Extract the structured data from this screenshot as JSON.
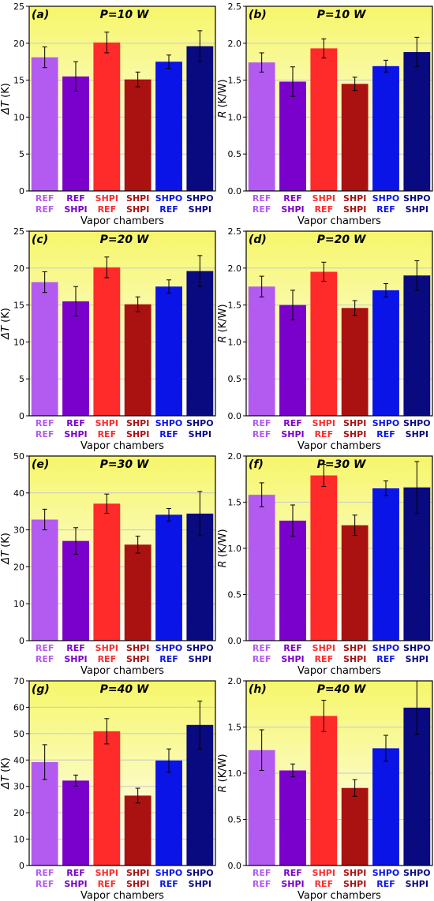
{
  "chart_data": [
    {
      "type": "bar",
      "panel_label": "(a)",
      "title": "P=10 W",
      "ylabel_symbol": "ΔT",
      "ylabel_unit": "(K)",
      "xlabel": "Vapor chambers",
      "ylim": [
        0,
        25
      ],
      "yticks": [
        "0",
        "5",
        "10",
        "15",
        "20",
        "25"
      ],
      "categories": [
        [
          "REF",
          "REF"
        ],
        [
          "REF",
          "SHPI"
        ],
        [
          "SHPI",
          "REF"
        ],
        [
          "SHPI",
          "SHPI"
        ],
        [
          "SHPO",
          "REF"
        ],
        [
          "SHPO",
          "SHPI"
        ]
      ],
      "values": [
        18.1,
        15.5,
        20.1,
        15.1,
        17.5,
        19.6
      ],
      "errors": [
        1.4,
        2.0,
        1.4,
        1.0,
        0.9,
        2.1
      ]
    },
    {
      "type": "bar",
      "panel_label": "(b)",
      "title": "P=10 W",
      "ylabel_symbol": "R",
      "ylabel_unit": "(K/W)",
      "xlabel": "Vapor chambers",
      "ylim": [
        0,
        2.5
      ],
      "yticks": [
        "0.0",
        "0.5",
        "1.0",
        "1.5",
        "2.0",
        "2.5"
      ],
      "categories": [
        [
          "REF",
          "REF"
        ],
        [
          "REF",
          "SHPI"
        ],
        [
          "SHPI",
          "REF"
        ],
        [
          "SHPI",
          "SHPI"
        ],
        [
          "SHPO",
          "REF"
        ],
        [
          "SHPO",
          "SHPI"
        ]
      ],
      "values": [
        1.74,
        1.48,
        1.93,
        1.45,
        1.69,
        1.88
      ],
      "errors": [
        0.13,
        0.2,
        0.13,
        0.09,
        0.08,
        0.2
      ]
    },
    {
      "type": "bar",
      "panel_label": "(c)",
      "title": "P=20 W",
      "ylabel_symbol": "ΔT",
      "ylabel_unit": "(K)",
      "xlabel": "Vapor chambers",
      "ylim": [
        0,
        25
      ],
      "yticks": [
        "0",
        "5",
        "10",
        "15",
        "20",
        "25"
      ],
      "categories": [
        [
          "REF",
          "REF"
        ],
        [
          "REF",
          "SHPI"
        ],
        [
          "SHPI",
          "REF"
        ],
        [
          "SHPI",
          "SHPI"
        ],
        [
          "SHPO",
          "REF"
        ],
        [
          "SHPO",
          "SHPI"
        ]
      ],
      "values": [
        18.1,
        15.5,
        20.1,
        15.1,
        17.5,
        19.6
      ],
      "errors": [
        1.4,
        2.0,
        1.4,
        1.0,
        0.9,
        2.1
      ]
    },
    {
      "type": "bar",
      "panel_label": "(d)",
      "title": "P=20 W",
      "ylabel_symbol": "R",
      "ylabel_unit": "(K/W)",
      "xlabel": "Vapor chambers",
      "ylim": [
        0,
        2.5
      ],
      "yticks": [
        "0.0",
        "0.5",
        "1.0",
        "1.5",
        "2.0",
        "2.5"
      ],
      "categories": [
        [
          "REF",
          "REF"
        ],
        [
          "REF",
          "SHPI"
        ],
        [
          "SHPI",
          "REF"
        ],
        [
          "SHPI",
          "SHPI"
        ],
        [
          "SHPO",
          "REF"
        ],
        [
          "SHPO",
          "SHPI"
        ]
      ],
      "values": [
        1.75,
        1.5,
        1.95,
        1.46,
        1.7,
        1.9
      ],
      "errors": [
        0.14,
        0.2,
        0.13,
        0.1,
        0.09,
        0.2
      ]
    },
    {
      "type": "bar",
      "panel_label": "(e)",
      "title": "P=30 W",
      "ylabel_symbol": "ΔT",
      "ylabel_unit": "(K)",
      "xlabel": "Vapor chambers",
      "ylim": [
        0,
        50
      ],
      "yticks": [
        "0",
        "10",
        "20",
        "30",
        "40",
        "50"
      ],
      "categories": [
        [
          "REF",
          "REF"
        ],
        [
          "REF",
          "SHPI"
        ],
        [
          "SHPI",
          "REF"
        ],
        [
          "SHPI",
          "SHPI"
        ],
        [
          "SHPO",
          "REF"
        ],
        [
          "SHPO",
          "SHPI"
        ]
      ],
      "values": [
        32.8,
        27.0,
        37.1,
        26.0,
        34.1,
        34.4
      ],
      "errors": [
        2.8,
        3.6,
        2.6,
        2.3,
        1.7,
        6.0
      ]
    },
    {
      "type": "bar",
      "panel_label": "(f)",
      "title": "P=30 W",
      "ylabel_symbol": "R",
      "ylabel_unit": "(K/W)",
      "xlabel": "Vapor chambers",
      "ylim": [
        0,
        2.0
      ],
      "yticks": [
        "0.0",
        "0.5",
        "1.0",
        "1.5",
        "2.0"
      ],
      "categories": [
        [
          "REF",
          "REF"
        ],
        [
          "REF",
          "SHPI"
        ],
        [
          "SHPI",
          "REF"
        ],
        [
          "SHPI",
          "SHPI"
        ],
        [
          "SHPO",
          "REF"
        ],
        [
          "SHPO",
          "SHPI"
        ]
      ],
      "values": [
        1.58,
        1.3,
        1.79,
        1.25,
        1.65,
        1.66
      ],
      "errors": [
        0.13,
        0.17,
        0.12,
        0.11,
        0.08,
        0.28
      ]
    },
    {
      "type": "bar",
      "panel_label": "(g)",
      "title": "P=40 W",
      "ylabel_symbol": "ΔT",
      "ylabel_unit": "(K)",
      "xlabel": "Vapor chambers",
      "ylim": [
        0,
        70
      ],
      "yticks": [
        "0",
        "10",
        "20",
        "30",
        "40",
        "50",
        "60",
        "70"
      ],
      "categories": [
        [
          "REF",
          "REF"
        ],
        [
          "REF",
          "SHPI"
        ],
        [
          "SHPI",
          "REF"
        ],
        [
          "SHPI",
          "SHPI"
        ],
        [
          "SHPO",
          "REF"
        ],
        [
          "SHPO",
          "SHPI"
        ]
      ],
      "values": [
        39.2,
        32.2,
        50.9,
        26.5,
        39.8,
        53.3
      ],
      "errors": [
        6.6,
        2.1,
        4.8,
        2.8,
        4.4,
        9.0
      ]
    },
    {
      "type": "bar",
      "panel_label": "(h)",
      "title": "P=40 W",
      "ylabel_symbol": "R",
      "ylabel_unit": "(K/W)",
      "xlabel": "Vapor chambers",
      "ylim": [
        0,
        2.0
      ],
      "yticks": [
        "0.0",
        "0.5",
        "1.0",
        "1.5",
        "2.0"
      ],
      "categories": [
        [
          "REF",
          "REF"
        ],
        [
          "REF",
          "SHPI"
        ],
        [
          "SHPI",
          "REF"
        ],
        [
          "SHPI",
          "SHPI"
        ],
        [
          "SHPO",
          "REF"
        ],
        [
          "SHPO",
          "SHPI"
        ]
      ],
      "values": [
        1.25,
        1.03,
        1.62,
        0.84,
        1.27,
        1.71
      ],
      "errors": [
        0.22,
        0.07,
        0.17,
        0.09,
        0.14,
        0.29
      ]
    }
  ],
  "colors": {
    "bars": [
      "#b35bf0",
      "#7a00cc",
      "#ff2a2a",
      "#aa1111",
      "#0a14e6",
      "#0a0a80"
    ],
    "cat_top": [
      "#b35bf0",
      "#7a00cc",
      "#ff2a2a",
      "#aa1111",
      "#0a14e6",
      "#0a0a80"
    ],
    "cat_bottom": [
      "#b35bf0",
      "#7a00cc",
      "#ff2a2a",
      "#aa1111",
      "#0a14e6",
      "#0a0a80"
    ],
    "bg_top": "#f6f66a",
    "bg_bottom": "#ffffff",
    "grid": "#c8c8c8"
  }
}
